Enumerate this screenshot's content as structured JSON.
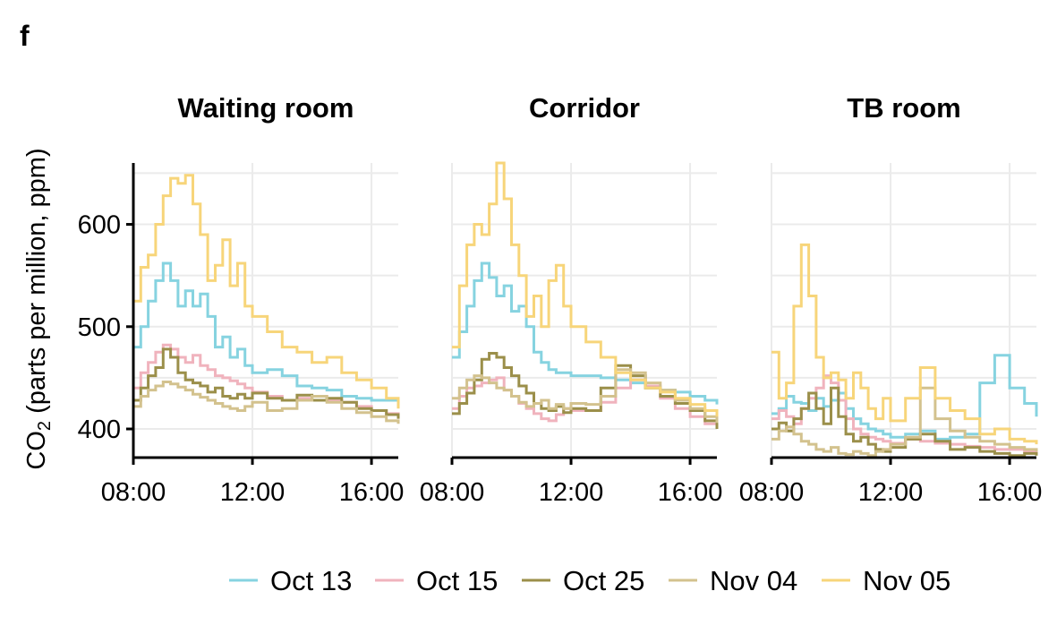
{
  "panel_label": "f",
  "chart_data": {
    "type": "line",
    "step": true,
    "ylabel": "CO₂ (parts per million, ppm)",
    "ylabel_main": "CO",
    "ylabel_sub": "2",
    "ylabel_rest": " (parts per million, ppm)",
    "ylim": [
      372,
      660
    ],
    "yticks": [
      400,
      500,
      600
    ],
    "ytick_labels": [
      "400",
      "500",
      "600"
    ],
    "xlim_hours": [
      8,
      16.9
    ],
    "xticks_hours": [
      8,
      12,
      16
    ],
    "xtick_labels": [
      "08:00",
      "12:00",
      "16:00"
    ],
    "legend_position": "bottom",
    "series_legend": [
      {
        "name": "Oct 13",
        "color": "#86d3e0"
      },
      {
        "name": "Oct 15",
        "color": "#f0b3bd"
      },
      {
        "name": "Oct 25",
        "color": "#9b8f4a"
      },
      {
        "name": "Nov 04",
        "color": "#d3c28e"
      },
      {
        "name": "Nov 05",
        "color": "#f7d57a"
      }
    ],
    "facets": [
      {
        "title": "Waiting room",
        "series": [
          {
            "name": "Oct 13",
            "x": [
              8,
              8.25,
              8.5,
              8.75,
              9,
              9.25,
              9.5,
              9.75,
              10,
              10.25,
              10.5,
              10.75,
              11,
              11.25,
              11.5,
              11.75,
              12,
              12.5,
              13,
              13.5,
              14,
              14.5,
              15,
              15.5,
              16,
              16.5,
              16.9
            ],
            "y": [
              480,
              500,
              525,
              545,
              562,
              545,
              520,
              535,
              520,
              532,
              510,
              480,
              490,
              470,
              478,
              462,
              455,
              458,
              452,
              442,
              440,
              438,
              432,
              430,
              428,
              428,
              424
            ]
          },
          {
            "name": "Oct 15",
            "x": [
              8,
              8.25,
              8.5,
              8.75,
              9,
              9.25,
              9.5,
              9.75,
              10,
              10.25,
              10.5,
              10.75,
              11,
              11.25,
              11.5,
              11.75,
              12,
              12.5,
              13,
              13.5,
              14,
              14.5,
              15,
              15.5,
              16,
              16.5,
              16.9
            ],
            "y": [
              440,
              455,
              465,
              475,
              482,
              478,
              470,
              465,
              472,
              462,
              458,
              452,
              450,
              447,
              444,
              440,
              436,
              432,
              428,
              430,
              432,
              428,
              426,
              422,
              418,
              415,
              410
            ]
          },
          {
            "name": "Oct 25",
            "x": [
              8,
              8.25,
              8.5,
              8.75,
              9,
              9.25,
              9.5,
              9.75,
              10,
              10.25,
              10.5,
              10.75,
              11,
              11.25,
              11.5,
              11.75,
              12,
              12.5,
              13,
              13.5,
              14,
              14.5,
              15,
              15.5,
              16,
              16.5,
              16.9
            ],
            "y": [
              428,
              440,
              452,
              460,
              478,
              470,
              455,
              448,
              445,
              442,
              436,
              440,
              432,
              430,
              434,
              430,
              435,
              430,
              428,
              433,
              428,
              430,
              426,
              420,
              418,
              414,
              410
            ]
          },
          {
            "name": "Nov 04",
            "x": [
              8,
              8.25,
              8.5,
              8.75,
              9,
              9.25,
              9.5,
              9.75,
              10,
              10.25,
              10.5,
              10.75,
              11,
              11.25,
              11.5,
              11.75,
              12,
              12.5,
              13,
              13.5,
              14,
              14.5,
              15,
              15.5,
              16,
              16.5,
              16.9
            ],
            "y": [
              422,
              432,
              438,
              442,
              446,
              444,
              441,
              438,
              434,
              431,
              428,
              425,
              422,
              420,
              418,
              422,
              426,
              418,
              420,
              428,
              432,
              426,
              420,
              416,
              412,
              408,
              405
            ]
          },
          {
            "name": "Nov 05",
            "x": [
              8,
              8.25,
              8.5,
              8.75,
              9,
              9.25,
              9.5,
              9.75,
              10,
              10.25,
              10.5,
              10.75,
              11,
              11.25,
              11.5,
              11.75,
              12,
              12.5,
              13,
              13.5,
              14,
              14.5,
              15,
              15.5,
              16,
              16.5,
              16.9
            ],
            "y": [
              525,
              558,
              570,
              600,
              628,
              645,
              640,
              648,
              620,
              590,
              545,
              560,
              585,
              540,
              562,
              520,
              510,
              495,
              480,
              475,
              465,
              470,
              455,
              448,
              440,
              430,
              420
            ]
          }
        ]
      },
      {
        "title": "Corridor",
        "series": [
          {
            "name": "Oct 13",
            "x": [
              8,
              8.25,
              8.5,
              8.75,
              9,
              9.25,
              9.5,
              9.75,
              10,
              10.25,
              10.5,
              10.75,
              11,
              11.25,
              11.5,
              11.75,
              12,
              12.5,
              13,
              13.5,
              14,
              14.5,
              15,
              15.5,
              16,
              16.5,
              16.9
            ],
            "y": [
              470,
              495,
              520,
              545,
              562,
              548,
              530,
              540,
              515,
              520,
              500,
              475,
              465,
              458,
              455,
              455,
              452,
              452,
              450,
              448,
              445,
              440,
              438,
              436,
              432,
              428,
              424
            ]
          },
          {
            "name": "Oct 15",
            "x": [
              8,
              8.25,
              8.5,
              8.75,
              9,
              9.25,
              9.5,
              9.75,
              10,
              10.25,
              10.5,
              10.75,
              11,
              11.25,
              11.5,
              11.75,
              12,
              12.5,
              13,
              13.5,
              14,
              14.5,
              15,
              15.5,
              16,
              16.5,
              16.9
            ],
            "y": [
              420,
              432,
              440,
              442,
              445,
              448,
              450,
              438,
              432,
              425,
              420,
              415,
              410,
              408,
              414,
              420,
              418,
              418,
              426,
              440,
              448,
              442,
              430,
              420,
              412,
              405,
              402
            ]
          },
          {
            "name": "Oct 25",
            "x": [
              8,
              8.25,
              8.5,
              8.75,
              9,
              9.25,
              9.5,
              9.75,
              10,
              10.25,
              10.5,
              10.75,
              11,
              11.25,
              11.5,
              11.75,
              12,
              12.5,
              13,
              13.5,
              14,
              14.5,
              15,
              15.5,
              16,
              16.5,
              16.9
            ],
            "y": [
              415,
              425,
              435,
              448,
              468,
              474,
              470,
              460,
              452,
              442,
              435,
              425,
              420,
              418,
              422,
              416,
              420,
              418,
              440,
              462,
              452,
              440,
              432,
              425,
              418,
              408,
              400
            ]
          },
          {
            "name": "Nov 04",
            "x": [
              8,
              8.25,
              8.5,
              8.75,
              9,
              9.25,
              9.5,
              9.75,
              10,
              10.25,
              10.5,
              10.75,
              11,
              11.25,
              11.5,
              11.75,
              12,
              12.5,
              13,
              13.5,
              14,
              14.5,
              15,
              15.5,
              16,
              16.5,
              16.9
            ],
            "y": [
              430,
              440,
              448,
              452,
              450,
              445,
              440,
              438,
              432,
              426,
              422,
              425,
              428,
              420,
              424,
              420,
              425,
              424,
              432,
              458,
              455,
              445,
              438,
              428,
              420,
              412,
              406
            ]
          },
          {
            "name": "Nov 05",
            "x": [
              8,
              8.25,
              8.5,
              8.75,
              9,
              9.25,
              9.5,
              9.75,
              10,
              10.25,
              10.5,
              10.75,
              11,
              11.25,
              11.5,
              11.75,
              12,
              12.5,
              13,
              13.5,
              14,
              14.5,
              15,
              15.5,
              16,
              16.5,
              16.9
            ],
            "y": [
              480,
              540,
              580,
              600,
              590,
              620,
              660,
              625,
              580,
              550,
              510,
              530,
              500,
              545,
              560,
              520,
              500,
              485,
              470,
              455,
              448,
              440,
              436,
              430,
              424,
              418,
              412
            ]
          }
        ]
      },
      {
        "title": "TB room",
        "series": [
          {
            "name": "Oct 13",
            "x": [
              8,
              8.25,
              8.5,
              8.75,
              9,
              9.25,
              9.5,
              9.75,
              10,
              10.25,
              10.5,
              10.75,
              11,
              11.25,
              11.5,
              11.75,
              12,
              12.5,
              13,
              13.5,
              14,
              14.5,
              15,
              15.5,
              16,
              16.5,
              16.9
            ],
            "y": [
              415,
              420,
              432,
              426,
              425,
              418,
              430,
              422,
              428,
              435,
              420,
              410,
              405,
              400,
              398,
              395,
              392,
              395,
              398,
              390,
              392,
              395,
              445,
              472,
              440,
              425,
              412
            ]
          },
          {
            "name": "Oct 15",
            "x": [
              8,
              8.25,
              8.5,
              8.75,
              9,
              9.25,
              9.5,
              9.75,
              10,
              10.25,
              10.5,
              10.75,
              11,
              11.25,
              11.5,
              11.75,
              12,
              12.5,
              13,
              13.5,
              14,
              14.5,
              15,
              15.5,
              16,
              16.5,
              16.9
            ],
            "y": [
              410,
              418,
              412,
              405,
              420,
              430,
              440,
              452,
              445,
              428,
              410,
              400,
              395,
              392,
              390,
              388,
              386,
              390,
              388,
              386,
              385,
              383,
              382,
              380,
              380,
              378,
              376
            ]
          },
          {
            "name": "Oct 25",
            "x": [
              8,
              8.25,
              8.5,
              8.75,
              9,
              9.25,
              9.5,
              9.75,
              10,
              10.25,
              10.5,
              10.75,
              11,
              11.25,
              11.5,
              11.75,
              12,
              12.5,
              13,
              13.5,
              14,
              14.5,
              15,
              15.5,
              16,
              16.5,
              16.9
            ],
            "y": [
              400,
              406,
              398,
              410,
              420,
              435,
              420,
              405,
              440,
              412,
              395,
              388,
              392,
              385,
              380,
              378,
              382,
              390,
              395,
              388,
              380,
              382,
              378,
              376,
              374,
              376,
              374
            ]
          },
          {
            "name": "Nov 04",
            "x": [
              8,
              8.25,
              8.5,
              8.75,
              9,
              9.25,
              9.5,
              9.75,
              10,
              10.25,
              10.5,
              10.75,
              11,
              11.25,
              11.5,
              11.75,
              12,
              12.5,
              13,
              13.5,
              14,
              14.5,
              15,
              15.5,
              16,
              16.5,
              16.9
            ],
            "y": [
              390,
              398,
              402,
              395,
              388,
              385,
              380,
              378,
              382,
              376,
              375,
              378,
              376,
              374,
              378,
              380,
              385,
              392,
              440,
              410,
              398,
              392,
              388,
              385,
              382,
              380,
              378
            ]
          },
          {
            "name": "Nov 05",
            "x": [
              8,
              8.25,
              8.5,
              8.75,
              9,
              9.25,
              9.5,
              9.75,
              10,
              10.25,
              10.5,
              10.75,
              11,
              11.25,
              11.5,
              11.75,
              12,
              12.5,
              13,
              13.5,
              14,
              14.5,
              15,
              15.5,
              16,
              16.5,
              16.9
            ],
            "y": [
              475,
              430,
              445,
              520,
              580,
              530,
              470,
              450,
              455,
              448,
              430,
              455,
              440,
              420,
              410,
              430,
              408,
              430,
              460,
              430,
              418,
              410,
              395,
              400,
              390,
              388,
              385
            ]
          }
        ]
      }
    ]
  }
}
